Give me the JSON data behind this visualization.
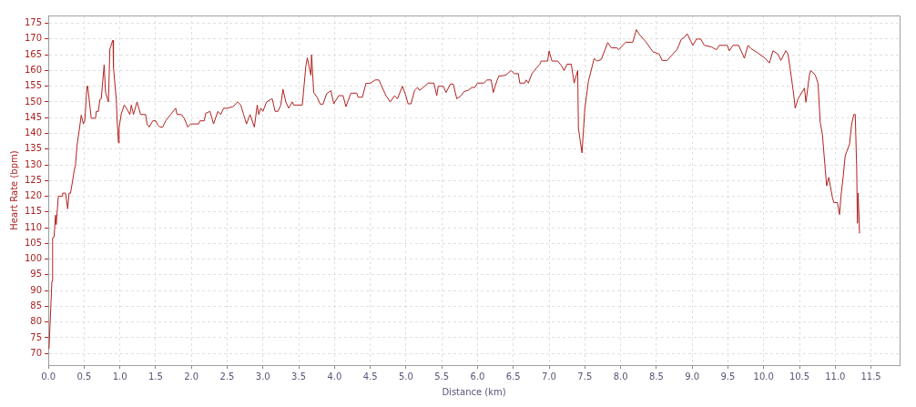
{
  "chart_data": {
    "type": "line",
    "xlabel": "Distance (km)",
    "ylabel": "Heart Rate (bpm)",
    "xlim": [
      0,
      11.9
    ],
    "ylim": [
      66.3,
      177.5
    ],
    "xticks": [
      {
        "value": 0,
        "label": "0.0"
      },
      {
        "value": 0.5,
        "label": "0.5"
      },
      {
        "value": 1,
        "label": "1.0"
      },
      {
        "value": 1.5,
        "label": "1.5"
      },
      {
        "value": 2,
        "label": "2.0"
      },
      {
        "value": 2.5,
        "label": "2.5"
      },
      {
        "value": 3,
        "label": "3.0"
      },
      {
        "value": 3.5,
        "label": "3.5"
      },
      {
        "value": 4,
        "label": "4.0"
      },
      {
        "value": 4.5,
        "label": "4.5"
      },
      {
        "value": 5,
        "label": "5.0"
      },
      {
        "value": 5.5,
        "label": "5.5"
      },
      {
        "value": 6,
        "label": "6.0"
      },
      {
        "value": 6.5,
        "label": "6.5"
      },
      {
        "value": 7,
        "label": "7.0"
      },
      {
        "value": 7.5,
        "label": "7.5"
      },
      {
        "value": 8,
        "label": "8.0"
      },
      {
        "value": 8.5,
        "label": "8.5"
      },
      {
        "value": 9,
        "label": "9.0"
      },
      {
        "value": 9.5,
        "label": "9.5"
      },
      {
        "value": 10,
        "label": "10.0"
      },
      {
        "value": 10.5,
        "label": "10.5"
      },
      {
        "value": 11,
        "label": "11.0"
      },
      {
        "value": 11.5,
        "label": "11.5"
      }
    ],
    "yticks": [
      70,
      75,
      80,
      85,
      90,
      95,
      100,
      105,
      110,
      115,
      120,
      125,
      130,
      135,
      140,
      145,
      150,
      155,
      160,
      165,
      170,
      175
    ],
    "grid": true,
    "legend": false,
    "marker": "none",
    "line_style": "solid",
    "series": [
      {
        "color": "#b22222",
        "x": [
          0,
          0.01,
          0.05,
          0.06,
          0.08,
          0.1,
          0.11,
          0.14,
          0.19,
          0.2,
          0.24,
          0.27,
          0.29,
          0.31,
          0.34,
          0.36,
          0.38,
          0.4,
          0.43,
          0.46,
          0.49,
          0.51,
          0.54,
          0.55,
          0.6,
          0.66,
          0.67,
          0.7,
          0.72,
          0.74,
          0.78,
          0.8,
          0.84,
          0.86,
          0.9,
          0.905,
          0.91,
          0.95,
          0.96,
          0.98,
          0.99,
          1.02,
          1.06,
          1.1,
          1.14,
          1.16,
          1.19,
          1.24,
          1.29,
          1.36,
          1.38,
          1.41,
          1.46,
          1.5,
          1.53,
          1.56,
          1.6,
          1.64,
          1.71,
          1.78,
          1.8,
          1.86,
          1.9,
          1.95,
          1.99,
          2.1,
          2.12,
          2.18,
          2.2,
          2.26,
          2.31,
          2.37,
          2.41,
          2.45,
          2.5,
          2.58,
          2.65,
          2.69,
          2.73,
          2.77,
          2.82,
          2.88,
          2.92,
          2.94,
          2.97,
          3.0,
          3.05,
          3.11,
          3.13,
          3.17,
          3.21,
          3.25,
          3.28,
          3.32,
          3.36,
          3.41,
          3.43,
          3.55,
          3.6,
          3.62,
          3.67,
          3.68,
          3.71,
          3.76,
          3.8,
          3.84,
          3.89,
          3.95,
          3.99,
          4.06,
          4.12,
          4.16,
          4.23,
          4.31,
          4.33,
          4.39,
          4.44,
          4.5,
          4.57,
          4.62,
          4.72,
          4.78,
          4.84,
          4.88,
          4.95,
          4.99,
          5.03,
          5.07,
          5.12,
          5.16,
          5.19,
          5.24,
          5.31,
          5.39,
          5.43,
          5.45,
          5.52,
          5.56,
          5.62,
          5.66,
          5.71,
          5.77,
          5.81,
          5.87,
          5.92,
          5.96,
          6.0,
          6.09,
          6.13,
          6.19,
          6.22,
          6.27,
          6.3,
          6.34,
          6.4,
          6.47,
          6.51,
          6.57,
          6.59,
          6.66,
          6.68,
          6.71,
          6.76,
          6.83,
          6.87,
          6.89,
          6.98,
          7.0,
          7.04,
          7.12,
          7.17,
          7.21,
          7.25,
          7.31,
          7.35,
          7.4,
          7.41,
          7.46,
          7.5,
          7.55,
          7.63,
          7.67,
          7.73,
          7.82,
          7.87,
          7.95,
          7.97,
          8.03,
          8.07,
          8.17,
          8.22,
          8.26,
          8.35,
          8.45,
          8.54,
          8.58,
          8.65,
          8.73,
          8.79,
          8.85,
          8.89,
          8.93,
          9.01,
          9.06,
          9.12,
          9.17,
          9.27,
          9.34,
          9.38,
          9.49,
          9.52,
          9.57,
          9.65,
          9.73,
          9.78,
          9.82,
          9.91,
          10.02,
          10.08,
          10.13,
          10.2,
          10.24,
          10.31,
          10.34,
          10.37,
          10.42,
          10.44,
          10.48,
          10.57,
          10.59,
          10.64,
          10.66,
          10.72,
          10.76,
          10.79,
          10.82,
          10.86,
          10.88,
          10.91,
          10.96,
          10.98,
          11.03,
          11.06,
          11.08,
          11.11,
          11.14,
          11.2,
          11.23,
          11.26,
          11.28,
          11.3,
          11.31,
          11.32,
          11.33,
          11.34
        ],
        "values": [
          71.6,
          71.7,
          93,
          106.8,
          107,
          114,
          111,
          120,
          120,
          121,
          121,
          116,
          121,
          121,
          125,
          128,
          130,
          136,
          140.7,
          145.8,
          143,
          144,
          155,
          155,
          144.8,
          144.8,
          147,
          147,
          150.8,
          151,
          161.8,
          153,
          150,
          166.8,
          169.6,
          169.6,
          161,
          150.8,
          144.8,
          137,
          142,
          146.2,
          149,
          147.7,
          146,
          149,
          146,
          150,
          146,
          146,
          143,
          142,
          144,
          144,
          142.7,
          142,
          142,
          144,
          146,
          148,
          146,
          146,
          144.8,
          142,
          143,
          143,
          144,
          144,
          146.4,
          147,
          143,
          147,
          146,
          148,
          148,
          148.5,
          150,
          149,
          146,
          143,
          146,
          142,
          149,
          146,
          148,
          147,
          150,
          150.8,
          151,
          147,
          147,
          149,
          154,
          150,
          148,
          150,
          149,
          149,
          161.4,
          164,
          158.5,
          165,
          153,
          151.4,
          149.3,
          149.3,
          152.6,
          153.6,
          149.4,
          152,
          152,
          148.5,
          152.8,
          152.8,
          151.5,
          151.5,
          155.9,
          155.9,
          157,
          157,
          152,
          150,
          152,
          151,
          155,
          152.5,
          149.4,
          149.4,
          153.7,
          154.6,
          153.7,
          154.6,
          156,
          156,
          152,
          155,
          155,
          153,
          155.7,
          155.7,
          151,
          152,
          153.3,
          153.7,
          154.6,
          154.6,
          156,
          156,
          157,
          157,
          153,
          156.7,
          158.3,
          158.3,
          158.6,
          160,
          159,
          159,
          156,
          156,
          157,
          156,
          159,
          161,
          162,
          163,
          163,
          166.2,
          163,
          163,
          161.6,
          160,
          162,
          162,
          156,
          160,
          141.6,
          133.8,
          148,
          156.6,
          163.8,
          163,
          163.5,
          168.9,
          167.2,
          167.2,
          166.6,
          168,
          169,
          169,
          173,
          171.5,
          169.2,
          166,
          165.2,
          163.2,
          163.2,
          165.2,
          166.7,
          170,
          170.5,
          171.7,
          168,
          170,
          170,
          168,
          167.5,
          166.6,
          168,
          168,
          166.3,
          168,
          168,
          163.9,
          168,
          167,
          165.7,
          163.9,
          162.4,
          166.3,
          165.2,
          163.2,
          166.3,
          165.2,
          160.6,
          152.3,
          148,
          151,
          154.4,
          149.9,
          158.6,
          160,
          158.6,
          155.9,
          143.5,
          139.8,
          128.8,
          123.3,
          126,
          119.7,
          118,
          118,
          114.2,
          120,
          126,
          132.9,
          136.6,
          143,
          146,
          146,
          128.8,
          111.4,
          121,
          115,
          108.2
        ]
      }
    ]
  }
}
